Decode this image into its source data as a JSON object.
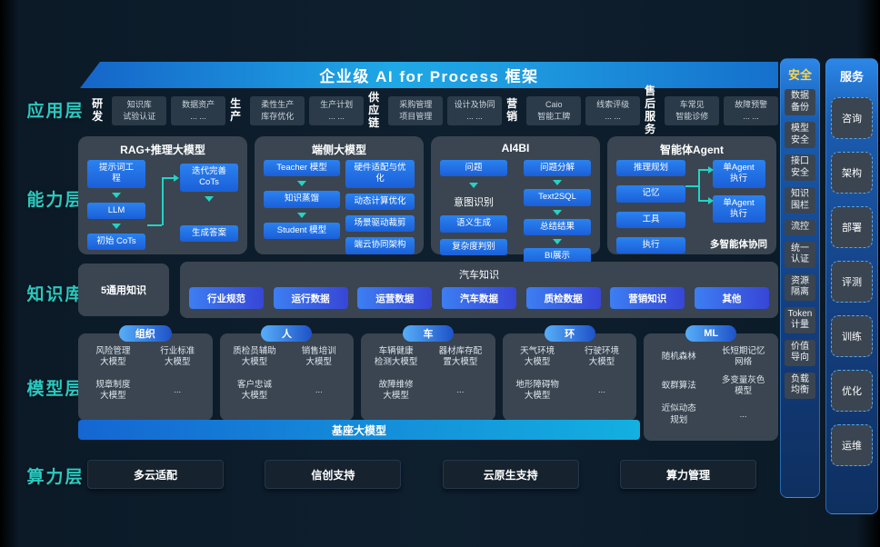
{
  "colors": {
    "background": "#0e1f2e",
    "accent_teal": "#2cc9c0",
    "flow_box_blue": "#1e6fe0",
    "banner_blue": "#1fa8e6",
    "card_gray": "#3a4551",
    "pill_gradient": [
      "#3d7ef2",
      "#3746d6"
    ],
    "security_header_yellow": "#ffd54a",
    "side_column_blue": "#1a5cb0"
  },
  "banner": {
    "title": "企业级 AI for Process 框架"
  },
  "layer_labels": [
    "应用层",
    "能力层",
    "知识库",
    "模型层",
    "算力层"
  ],
  "app_layer": {
    "groups": [
      {
        "name": "研发",
        "boxes": [
          "知识库\n试验认证",
          "数据资产\n... ..."
        ]
      },
      {
        "name": "生产",
        "boxes": [
          "柔性生产\n库存优化",
          "生产计划\n... ..."
        ]
      },
      {
        "name": "供应\n链",
        "boxes": [
          "采购管理\n项目管理",
          "设计及协同\n... ..."
        ]
      },
      {
        "name": "营销",
        "boxes": [
          "Caio\n智能工牌",
          "线索评级\n... ..."
        ]
      },
      {
        "name": "售后\n服务",
        "boxes": [
          "车常见\n智能诊修",
          "故障预警\n... ..."
        ]
      }
    ]
  },
  "capability_layer": {
    "cards": [
      {
        "title": "RAG+推理大模型",
        "connector": "elbow",
        "left": [
          [
            "box",
            "提示词工\n程"
          ],
          [
            "arr"
          ],
          [
            "box",
            "LLM"
          ],
          [
            "arr"
          ],
          [
            "box",
            "初始 CoTs"
          ]
        ],
        "right": [
          [
            "box",
            "迭代完善\nCoTs"
          ],
          [
            "arr"
          ],
          [
            "gap"
          ],
          [
            "box",
            "生成答案"
          ]
        ]
      },
      {
        "title": "端侧大模型",
        "left": [
          [
            "box",
            "Teacher 模型"
          ],
          [
            "arr"
          ],
          [
            "box",
            "知识蒸馏"
          ],
          [
            "arr"
          ],
          [
            "box",
            "Student 模型"
          ]
        ],
        "right": [
          [
            "box",
            "硬件适配与优\n化"
          ],
          [
            "box",
            "动态计算优化"
          ],
          [
            "box",
            "场景驱动裁剪"
          ],
          [
            "box",
            "端云协同架构"
          ]
        ]
      },
      {
        "title": "AI4BI",
        "left": [
          [
            "box",
            "问题"
          ],
          [
            "arr"
          ],
          [
            "text",
            "意图识别"
          ],
          [
            "box",
            "语义生成"
          ],
          [
            "box",
            "复杂度判别"
          ]
        ],
        "right": [
          [
            "box",
            "问题分解"
          ],
          [
            "arr"
          ],
          [
            "box",
            "Text2SQL"
          ],
          [
            "arr"
          ],
          [
            "box",
            "总结结果"
          ],
          [
            "arr"
          ],
          [
            "box",
            "BI展示"
          ]
        ]
      },
      {
        "title": "智能体Agent",
        "connector": "bracket",
        "left": [
          [
            "box",
            "推理规划"
          ],
          [
            "box",
            "记忆"
          ],
          [
            "box",
            "工具"
          ],
          [
            "box",
            "执行"
          ]
        ],
        "right": [
          [
            "box",
            "单Agent\n执行"
          ],
          [
            "box",
            "单Agent\n执行"
          ],
          [
            "caption",
            "多智能体协同"
          ]
        ]
      }
    ]
  },
  "knowledge_layer": {
    "general": "5通用知识",
    "group_title": "汽车知识",
    "pills": [
      "行业规范",
      "运行数据",
      "运营数据",
      "汽车数据",
      "质检数据",
      "营销知识",
      "其他"
    ]
  },
  "model_layer": {
    "groups": [
      {
        "name": "组织",
        "items": [
          "风险管理\n大模型",
          "行业标准\n大模型",
          "规章制度\n大模型",
          "..."
        ]
      },
      {
        "name": "人",
        "items": [
          "质检员辅助\n大模型",
          "销售培训\n大模型",
          "客户忠诚\n大模型",
          "..."
        ]
      },
      {
        "name": "车",
        "items": [
          "车辆健康\n检测大模型",
          "器材库存配\n置大模型",
          "故障维修\n大模型",
          "..."
        ]
      },
      {
        "name": "环",
        "items": [
          "天气环境\n大模型",
          "行驶环境\n大模型",
          "地形障碍物\n大模型",
          "..."
        ]
      },
      {
        "name": "ML",
        "items": [
          "随机森林",
          "长短期记忆\n网络",
          "蚁群算法",
          "多变量灰色\n模型",
          "近似动态\n规划",
          "..."
        ]
      }
    ],
    "base_bar": "基座大模型"
  },
  "compute_layer": {
    "boxes": [
      "多云适配",
      "信创支持",
      "云原生支持",
      "算力管理"
    ]
  },
  "security_column": {
    "header": "安全",
    "items": [
      "数据\n备份",
      "模型\n安全",
      "接口\n安全",
      "知识\n围栏",
      "流控",
      "统一\n认证",
      "资源\n隔离",
      "Token\n计量",
      "价值\n导向",
      "负载\n均衡"
    ]
  },
  "service_column": {
    "header": "服务",
    "items": [
      "咨询",
      "架构",
      "部署",
      "评测",
      "训练",
      "优化",
      "运维"
    ]
  }
}
